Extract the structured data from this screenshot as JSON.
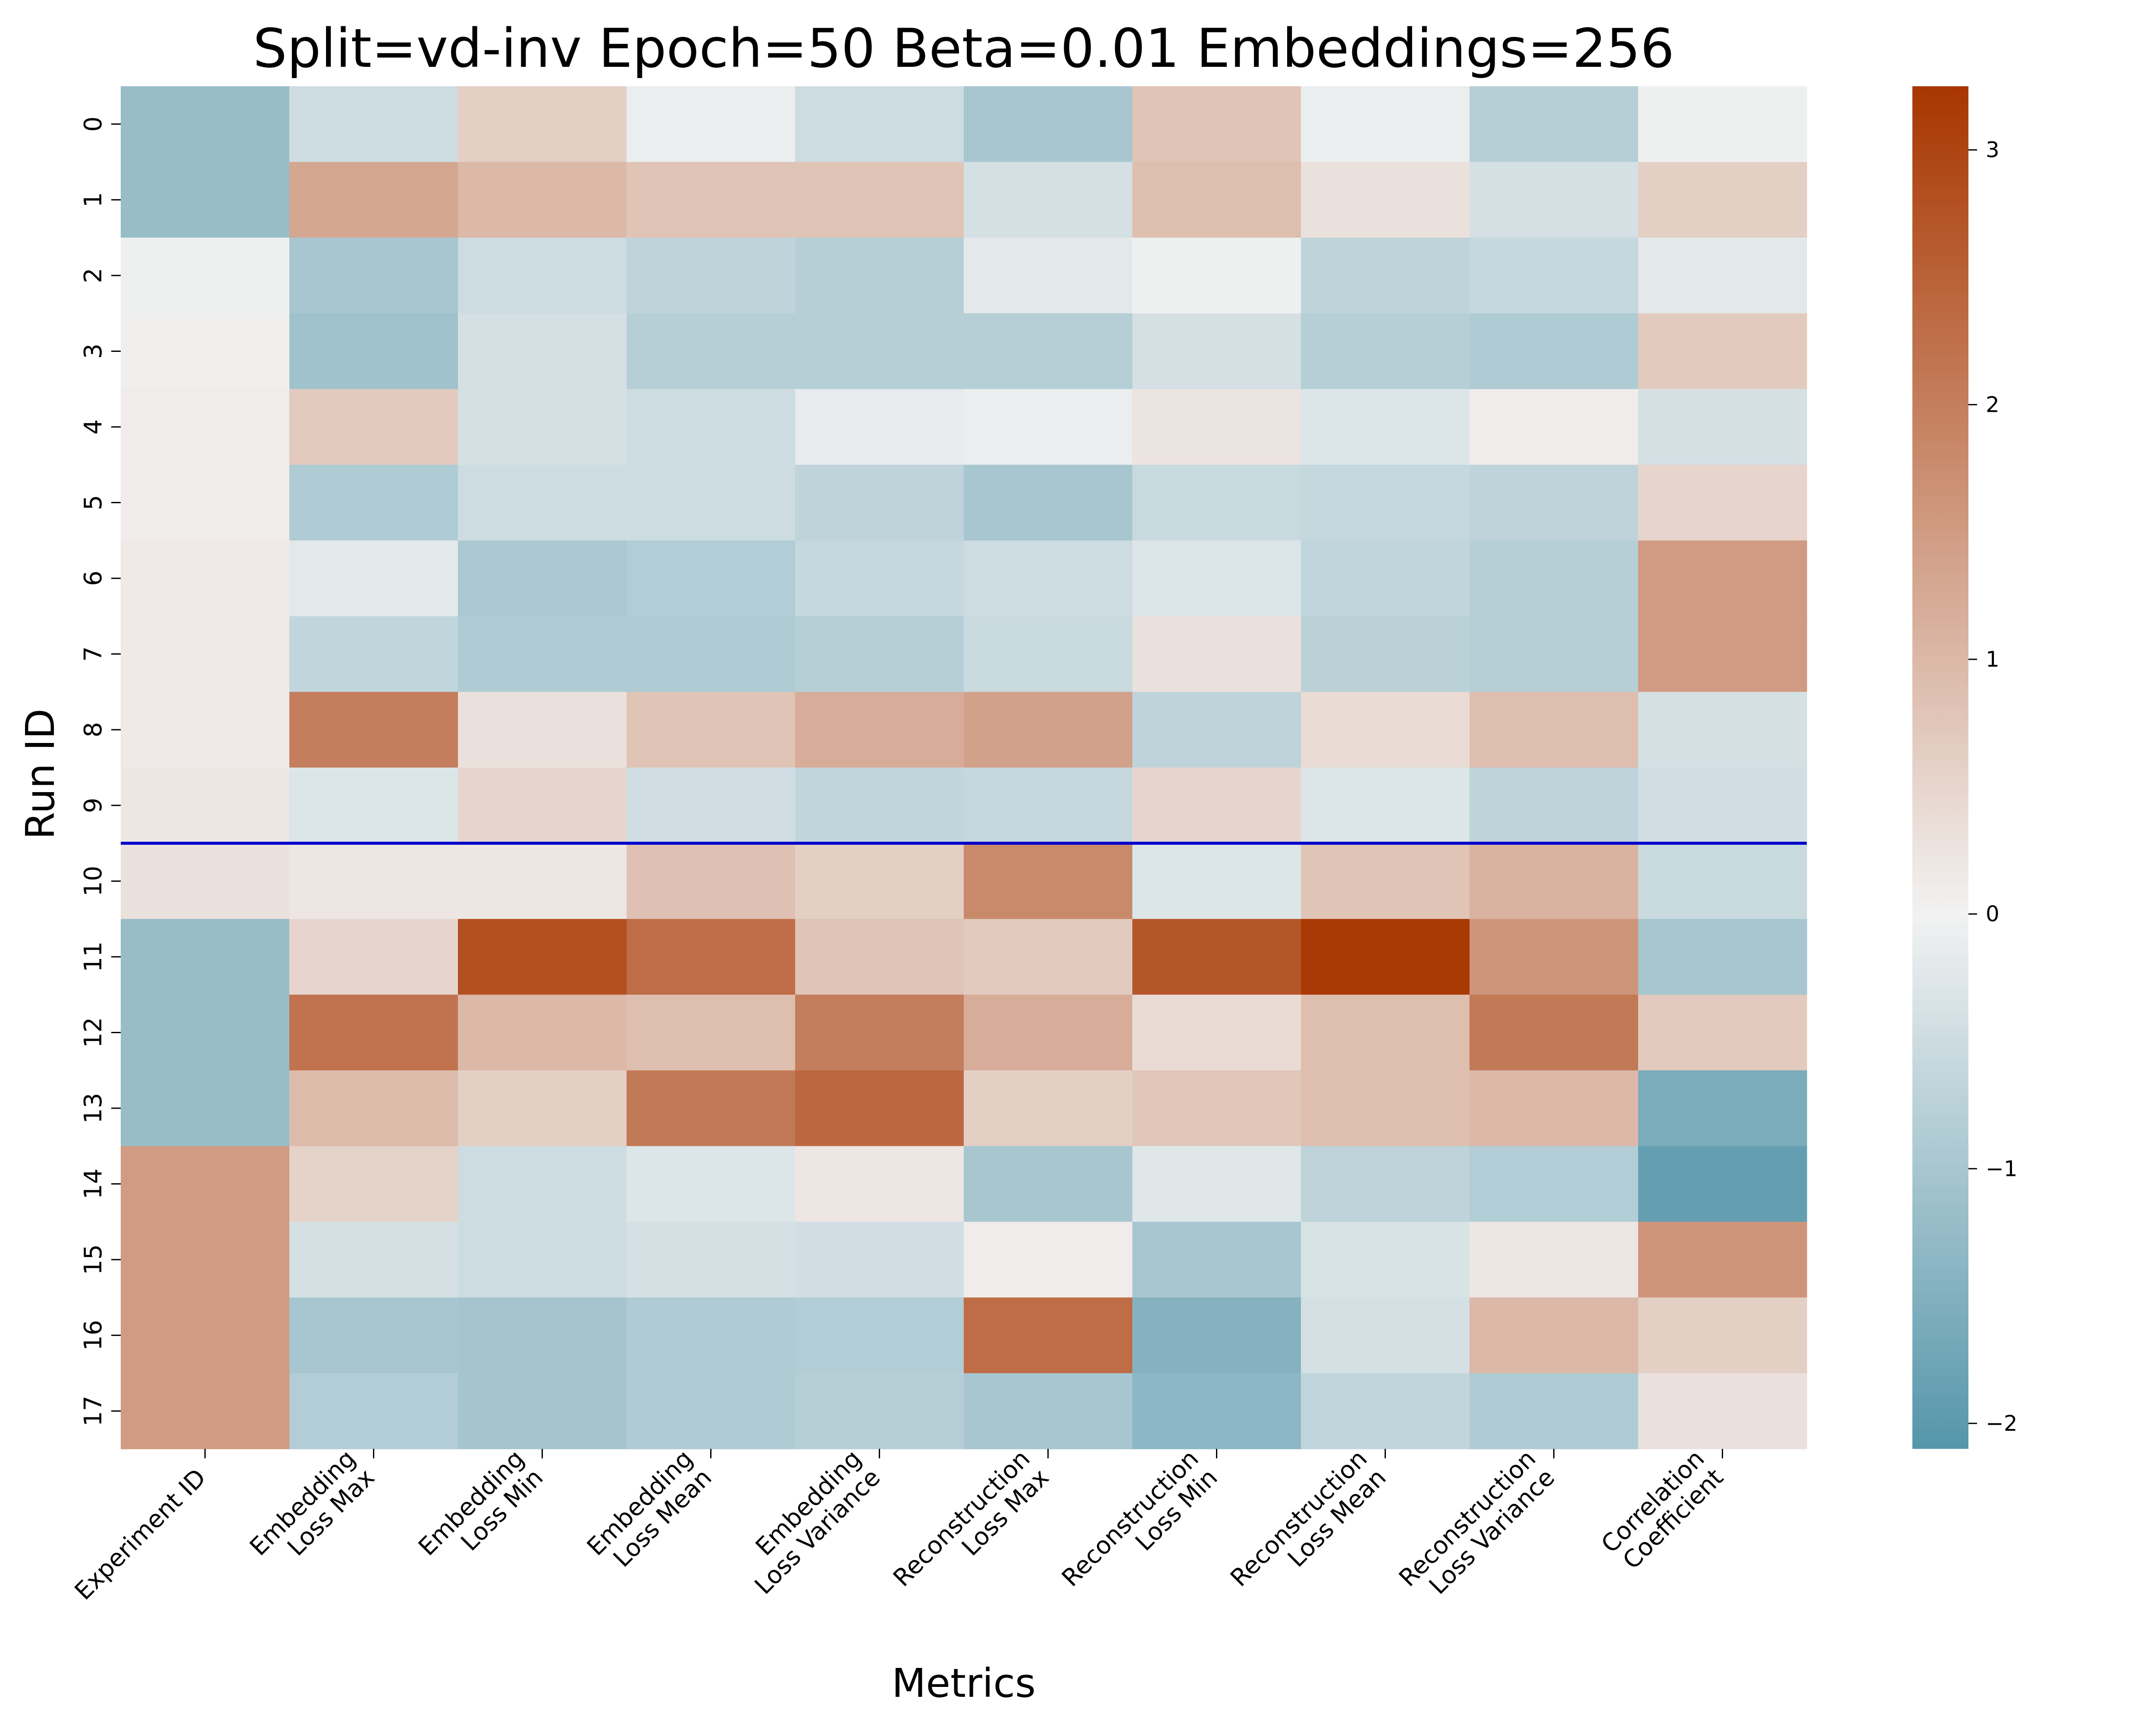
{
  "chart_data": {
    "type": "heatmap",
    "title": "Split=vd-inv Epoch=50 Beta=0.01 Embeddings=256",
    "xlabel": "Metrics",
    "ylabel": "Run ID",
    "x_categories": [
      [
        "Experiment ID"
      ],
      [
        "Embedding",
        "Loss Max"
      ],
      [
        "Embedding",
        "Loss Min"
      ],
      [
        "Embedding",
        "Loss Mean"
      ],
      [
        "Embedding",
        "Loss Variance"
      ],
      [
        "Reconstruction",
        "Loss Max"
      ],
      [
        "Reconstruction",
        "Loss Min"
      ],
      [
        "Reconstruction",
        "Loss Mean"
      ],
      [
        "Reconstruction",
        "Loss Variance"
      ],
      [
        "Correlation",
        "Coefficient"
      ]
    ],
    "y_categories": [
      "0",
      "1",
      "2",
      "3",
      "4",
      "5",
      "6",
      "7",
      "8",
      "9",
      "10",
      "11",
      "12",
      "13",
      "14",
      "15",
      "16",
      "17"
    ],
    "values": [
      [
        -1.2,
        -0.5,
        0.6,
        -0.1,
        -0.5,
        -1.0,
        0.8,
        -0.1,
        -0.8,
        -0.05
      ],
      [
        -1.2,
        1.3,
        1.0,
        0.8,
        0.8,
        -0.4,
        0.9,
        0.3,
        -0.4,
        0.6
      ],
      [
        -0.05,
        -1.0,
        -0.5,
        -0.7,
        -0.8,
        -0.2,
        -0.05,
        -0.7,
        -0.6,
        -0.2
      ],
      [
        0.05,
        -1.1,
        -0.4,
        -0.8,
        -0.8,
        -0.8,
        -0.4,
        -0.8,
        -0.9,
        0.7
      ],
      [
        0.1,
        0.7,
        -0.4,
        -0.5,
        -0.15,
        -0.1,
        0.25,
        -0.3,
        0.1,
        -0.4
      ],
      [
        0.1,
        -0.9,
        -0.5,
        -0.5,
        -0.7,
        -1.0,
        -0.55,
        -0.6,
        -0.7,
        0.5
      ],
      [
        0.15,
        -0.2,
        -0.95,
        -0.85,
        -0.6,
        -0.5,
        -0.3,
        -0.65,
        -0.8,
        1.5
      ],
      [
        0.15,
        -0.65,
        -0.9,
        -0.9,
        -0.8,
        -0.55,
        0.3,
        -0.75,
        -0.8,
        1.5
      ],
      [
        0.15,
        2.0,
        0.3,
        0.8,
        1.2,
        1.4,
        -0.7,
        0.4,
        0.9,
        -0.4
      ],
      [
        0.2,
        -0.3,
        0.5,
        -0.45,
        -0.65,
        -0.6,
        0.5,
        -0.3,
        -0.7,
        -0.45
      ],
      [
        0.3,
        0.2,
        0.2,
        0.85,
        0.6,
        1.8,
        -0.3,
        0.8,
        1.1,
        -0.55
      ],
      [
        -1.2,
        0.5,
        2.8,
        2.3,
        0.8,
        0.7,
        2.7,
        3.2,
        1.6,
        -1.0
      ],
      [
        -1.2,
        2.2,
        1.0,
        0.9,
        2.0,
        1.2,
        0.4,
        0.9,
        2.1,
        0.7
      ],
      [
        -1.2,
        0.95,
        0.6,
        2.1,
        2.4,
        0.6,
        0.75,
        0.9,
        1.0,
        -1.6
      ],
      [
        1.5,
        0.55,
        -0.5,
        -0.3,
        0.2,
        -1.0,
        -0.25,
        -0.7,
        -0.85,
        -1.9
      ],
      [
        1.5,
        -0.4,
        -0.5,
        -0.4,
        -0.45,
        0.1,
        -1.0,
        -0.35,
        0.2,
        1.6
      ],
      [
        1.5,
        -1.0,
        -1.05,
        -0.9,
        -0.85,
        2.3,
        -1.45,
        -0.4,
        1.0,
        0.6
      ],
      [
        1.5,
        -0.85,
        -1.05,
        -0.9,
        -0.8,
        -1.0,
        -1.35,
        -0.65,
        -0.9,
        0.3
      ]
    ],
    "vmin": -2.1,
    "vmax": 3.25,
    "colormap": {
      "low": "#5596aa",
      "mid": "#f2f2f2",
      "high": "#a83600"
    },
    "colorbar_ticks": [
      -2,
      -1,
      0,
      1,
      2,
      3
    ],
    "divider_after_row": 9,
    "divider_color": "#0000cc",
    "grid": false,
    "legend": "colorbar-right"
  }
}
